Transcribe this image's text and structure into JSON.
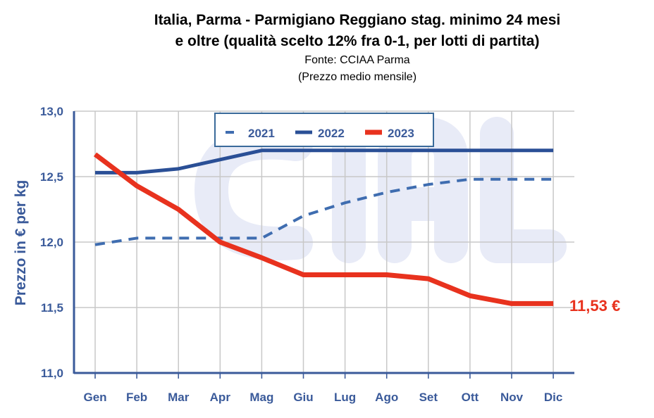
{
  "chart_data": {
    "type": "line",
    "title": "Italia, Parma - Parmigiano Reggiano stag. minimo 24 mesi",
    "title_line2": "e oltre (qualità scelto 12% fra 0-1, per lotti di partita)",
    "subtitle": "Fonte: CCIAA Parma",
    "subtitle2": "(Prezzo medio mensile)",
    "ylabel": "Prezzo in € per kg",
    "xlabel": "",
    "ylim": [
      11.0,
      13.0
    ],
    "yticks": [
      "11,0",
      "11,5",
      "12,0",
      "12,5",
      "13,0"
    ],
    "ytick_values": [
      11.0,
      11.5,
      12.0,
      12.5,
      13.0
    ],
    "categories": [
      "Gen",
      "Feb",
      "Mar",
      "Apr",
      "Mag",
      "Giu",
      "Lug",
      "Ago",
      "Set",
      "Ott",
      "Nov",
      "Dic"
    ],
    "grid": true,
    "legend_position": "top-center",
    "series": [
      {
        "name": "2021",
        "style": "dashed",
        "color": "#3f6db0",
        "values": [
          11.98,
          12.03,
          12.03,
          12.03,
          12.03,
          12.2,
          12.3,
          12.38,
          12.44,
          12.48,
          12.48,
          12.48
        ]
      },
      {
        "name": "2022",
        "style": "solid",
        "color": "#2a4f96",
        "values": [
          12.53,
          12.53,
          12.56,
          12.63,
          12.7,
          12.7,
          12.7,
          12.7,
          12.7,
          12.7,
          12.7,
          12.7
        ]
      },
      {
        "name": "2023",
        "style": "thick",
        "color": "#e8321e",
        "values": [
          12.67,
          12.43,
          12.25,
          12.0,
          11.88,
          11.75,
          11.75,
          11.75,
          11.72,
          11.59,
          11.53,
          11.53
        ]
      }
    ],
    "annotation": "11,53 €",
    "watermark": "CIAL"
  }
}
